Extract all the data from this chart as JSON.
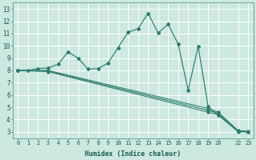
{
  "xlabel": "Humidex (Indice chaleur)",
  "bg_color": "#cce8e0",
  "grid_color": "#ffffff",
  "line_color": "#2e7d6e",
  "xlim": [
    -0.5,
    23.5
  ],
  "ylim": [
    2.5,
    13.5
  ],
  "xticks": [
    0,
    1,
    2,
    3,
    4,
    5,
    6,
    7,
    8,
    9,
    10,
    11,
    12,
    13,
    14,
    15,
    16,
    17,
    18,
    19,
    20,
    22,
    23
  ],
  "yticks": [
    3,
    4,
    5,
    6,
    7,
    8,
    9,
    10,
    11,
    12,
    13
  ],
  "line1_x": [
    0,
    1,
    2,
    3,
    4,
    5,
    6,
    7,
    8,
    9,
    10,
    11,
    12,
    13,
    14,
    15,
    16,
    17,
    18,
    19,
    20,
    22,
    23
  ],
  "line1_y": [
    8.0,
    8.0,
    8.15,
    8.2,
    8.5,
    9.5,
    9.0,
    8.1,
    8.15,
    8.6,
    9.85,
    11.1,
    11.4,
    12.65,
    11.05,
    11.75,
    10.15,
    6.4,
    9.95,
    5.05,
    4.35,
    3.05,
    3.0
  ],
  "line2_x": [
    0,
    3,
    19,
    20,
    22,
    23
  ],
  "line2_y": [
    8.0,
    8.0,
    4.9,
    4.6,
    3.1,
    3.05
  ],
  "line3_x": [
    0,
    3,
    19,
    20,
    22,
    23
  ],
  "line3_y": [
    8.0,
    7.95,
    4.75,
    4.5,
    3.05,
    3.0
  ],
  "line4_x": [
    0,
    3,
    19,
    20,
    22,
    23
  ],
  "line4_y": [
    8.0,
    7.9,
    4.6,
    4.4,
    3.0,
    3.0
  ]
}
